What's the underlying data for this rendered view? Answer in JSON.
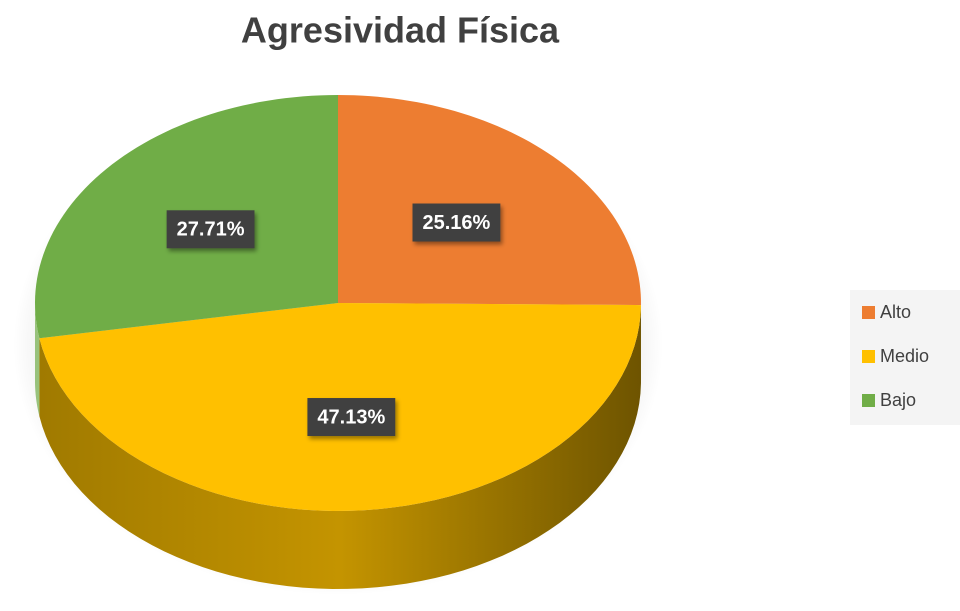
{
  "chart_data": {
    "type": "pie",
    "title": "Agresividad Física",
    "categories": [
      "Alto",
      "Medio",
      "Bajo"
    ],
    "values": [
      25.16,
      47.13,
      27.71
    ],
    "value_labels": [
      "25.16%",
      "47.13%",
      "27.71%"
    ],
    "colors": [
      "#ed7d31",
      "#ffc000",
      "#70ad47"
    ],
    "legend": "right"
  }
}
